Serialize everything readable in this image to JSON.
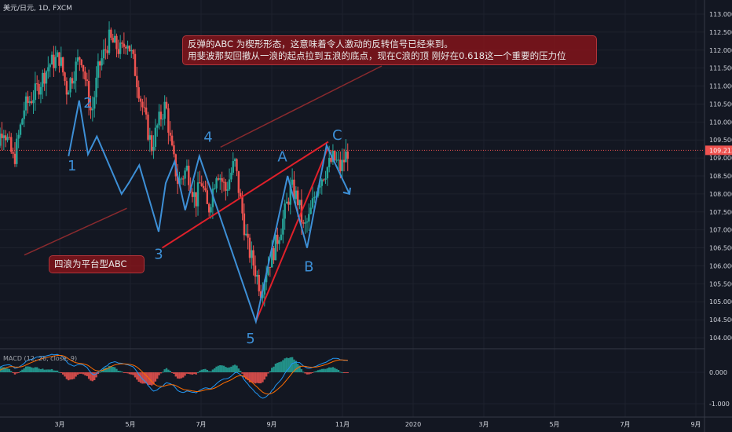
{
  "header": {
    "title": "美元/日元, 1D, FXCM"
  },
  "annotations": {
    "top_line1": "反弹的ABC 为楔形形态，这意味着令人激动的反转信号已经来到。",
    "top_line2": "用斐波那契回撤从一浪的起点拉到五浪的底点，现在C浪的顶 刚好在0.618这一个重要的压力位",
    "bottom": "四浪为平台型ABC"
  },
  "chart_data": [
    {
      "type": "candlestick",
      "title": "美元/日元, 1D, FXCM",
      "ylim": [
        103.6,
        113.2
      ],
      "yticks": [
        "113.000",
        "112.500",
        "112.000",
        "111.500",
        "111.000",
        "110.500",
        "110.000",
        "109.500",
        "109.000",
        "108.500",
        "108.000",
        "107.500",
        "107.000",
        "106.500",
        "106.000",
        "105.500",
        "105.000",
        "104.500",
        "104.000"
      ],
      "xticks": [
        "3月",
        "5月",
        "7月",
        "9月",
        "11月",
        "2020",
        "3月",
        "5月",
        "7月",
        "9月"
      ],
      "current_price": "109.213",
      "colors": {
        "up": "#26a69a",
        "down": "#ef5350",
        "wave": "#3d8fd6",
        "wedge": "#e0202a",
        "price_line": "#ef5350"
      },
      "wave_labels": [
        "1",
        "2",
        "3",
        "4",
        "5",
        "A",
        "B",
        "C"
      ],
      "key_points": [
        {
          "label": "2",
          "month": 4.8,
          "price": 110.7
        },
        {
          "label": "1",
          "month": 4.4,
          "price": 109.05
        },
        {
          "label": "4",
          "month": 7.0,
          "price": 109.0
        },
        {
          "label": "3",
          "month": 6.3,
          "price": 106.85
        },
        {
          "label": "5",
          "month": 8.55,
          "price": 104.45
        },
        {
          "label": "A",
          "month": 9.3,
          "price": 108.55
        },
        {
          "label": "B",
          "month": 10.0,
          "price": 106.5
        },
        {
          "label": "C",
          "month": 10.55,
          "price": 109.55
        }
      ]
    },
    {
      "type": "bar",
      "title": "MACD (12, 26, close, 9)",
      "ylim": [
        -1.1,
        0.4
      ],
      "yticks": [
        "0.000",
        "-1.000"
      ]
    }
  ]
}
